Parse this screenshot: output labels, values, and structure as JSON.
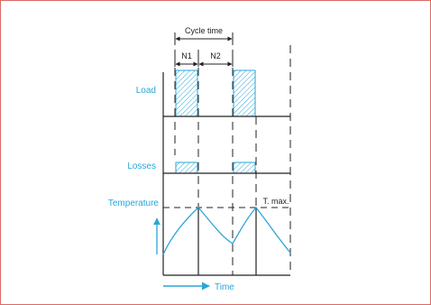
{
  "diagram": {
    "labels": {
      "cycle_time": "Cycle time",
      "n1": "N1",
      "n2": "N2",
      "load": "Load",
      "losses": "Losses",
      "temperature": "Temperature",
      "tmax": "T. max.",
      "time": "Time"
    },
    "colors": {
      "frame_border": "#d96a66",
      "accent_blue": "#2aa6d6",
      "hatch_blue": "#7cc6e0",
      "ink": "#222222"
    }
  }
}
